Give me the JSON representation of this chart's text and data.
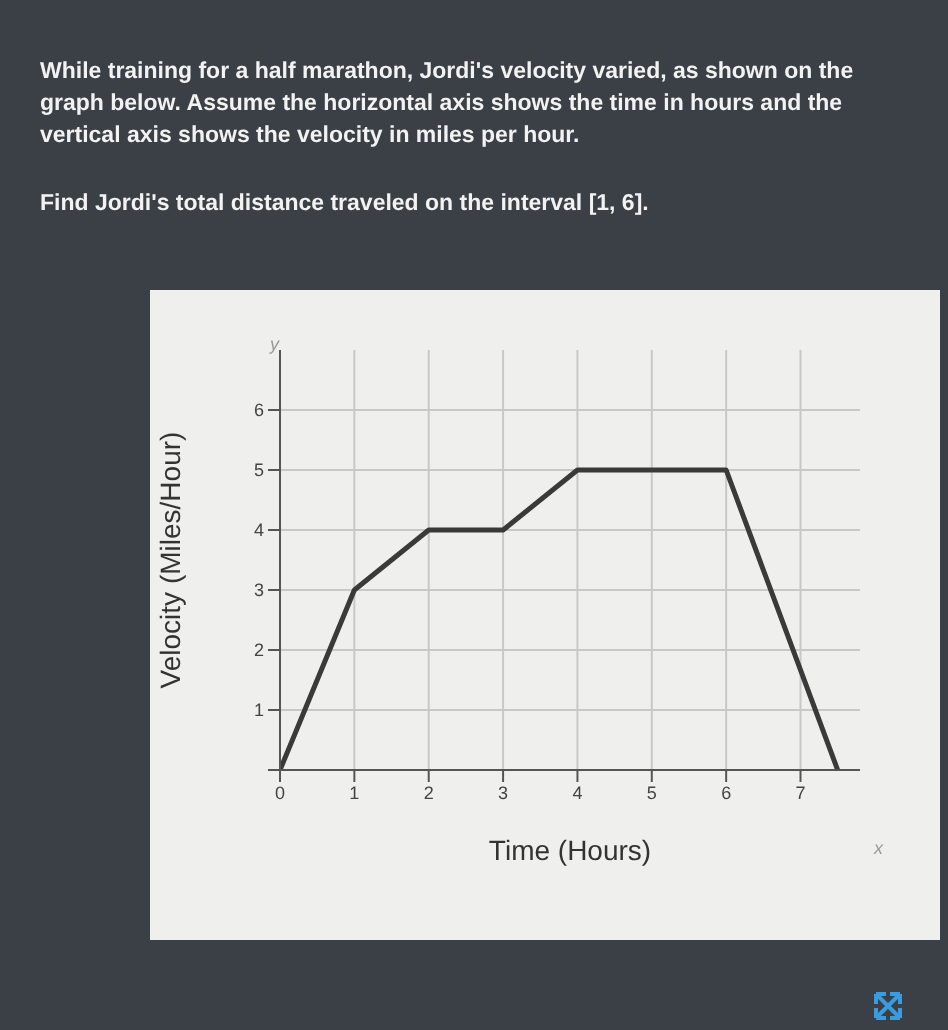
{
  "chart_data": {
    "type": "line",
    "title": "While training for a half marathon, Jordi's velocity varied, as shown on the graph below. Assume the horizontal axis shows the time in hours and the vertical axis shows the velocity in miles per hour.",
    "subtitle": "Find Jordi's total distance traveled on the interval [1, 6].",
    "xlabel": "Time (Hours)",
    "ylabel": "Velocity (Miles/Hour)",
    "annotations": [
      "x",
      "y"
    ],
    "x": [
      0,
      1,
      2,
      3,
      4,
      6,
      7.5
    ],
    "series": [
      {
        "color": "#3a3a3a",
        "values": [
          0,
          3,
          4,
          4,
          5,
          5,
          0
        ]
      }
    ],
    "xlim": [
      0,
      7.8
    ],
    "ylim": [
      0,
      7
    ],
    "xticks": [
      0,
      1,
      2,
      3,
      4,
      5,
      6,
      7
    ],
    "yticks": [
      {
        "value": 0,
        "label": null
      },
      1,
      2,
      3,
      4,
      5,
      6
    ],
    "grid": true,
    "marker": "none",
    "line_style": "solid",
    "legend": false
  }
}
